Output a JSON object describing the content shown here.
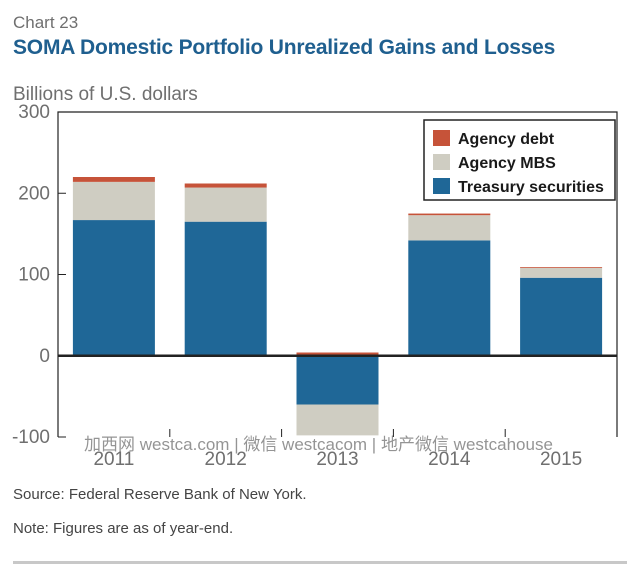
{
  "header": {
    "chart_number": "Chart 23",
    "title": "SOMA Domestic Portfolio Unrealized Gains and Losses",
    "units": "Billions of U.S. dollars"
  },
  "footer": {
    "source": "Source: Federal Reserve Bank of New York.",
    "note": "Note: Figures are as of year-end."
  },
  "watermark": "加西网 westca.com | 微信 westcacom | 地产微信 westcahouse",
  "colors": {
    "treasury": "#1f6797",
    "mbs": "#cfcdc2",
    "agency_debt": "#c65339",
    "axis": "#222222",
    "tick_text": "#6f6f6f",
    "zero_line": "#222222"
  },
  "chart_data": {
    "type": "bar",
    "stacked": true,
    "categories": [
      "2011",
      "2012",
      "2013",
      "2014",
      "2015"
    ],
    "series": [
      {
        "name": "Treasury securities",
        "color": "#1f6797",
        "values": [
          167,
          165,
          -60,
          142,
          96
        ]
      },
      {
        "name": "Agency MBS",
        "color": "#cfcdc2",
        "values": [
          47,
          42,
          -38,
          31,
          12
        ]
      },
      {
        "name": "Agency debt",
        "color": "#c65339",
        "values": [
          6,
          5,
          4,
          2,
          1
        ]
      }
    ],
    "legend_order": [
      "Agency debt",
      "Agency MBS",
      "Treasury securities"
    ],
    "title": "SOMA Domestic Portfolio Unrealized Gains and Losses",
    "xlabel": "",
    "ylabel": "Billions of U.S. dollars",
    "ylim": [
      -100,
      300
    ],
    "yticks": [
      -100,
      0,
      100,
      200,
      300
    ],
    "ytick_labels": [
      "-100",
      "0",
      "100",
      "200",
      "300"
    ],
    "legend_position": "top-right",
    "grid": false
  }
}
